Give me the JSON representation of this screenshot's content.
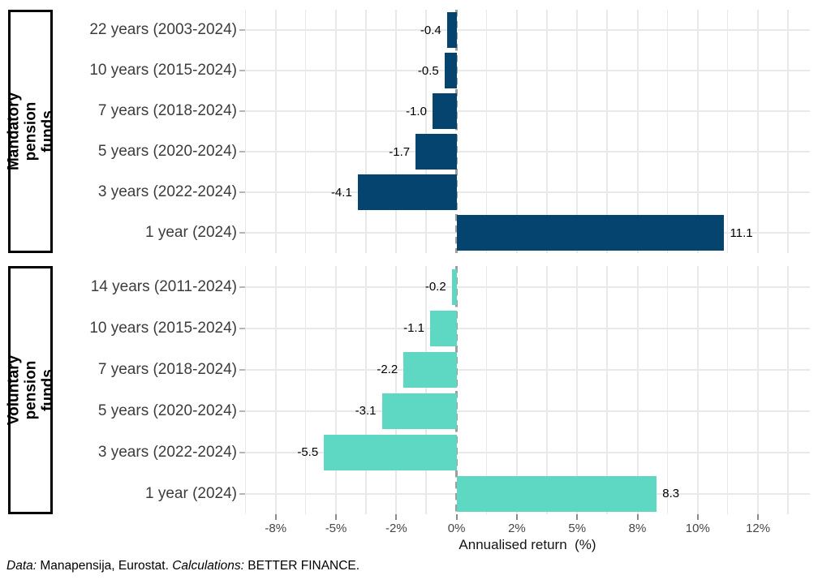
{
  "chart_data": {
    "type": "bar",
    "orientation": "horizontal",
    "title": "",
    "xlabel": "Annualised return  (%)",
    "ylabel": "",
    "xlim": [
      -8.77,
      14.65
    ],
    "grid": true,
    "minor_grid_step": 1.25,
    "x_ticks": [
      {
        "value": -7.5,
        "label": "-8%"
      },
      {
        "value": -5,
        "label": "-5%"
      },
      {
        "value": -2.5,
        "label": "-2%"
      },
      {
        "value": 0,
        "label": "0%"
      },
      {
        "value": 2.5,
        "label": "2%"
      },
      {
        "value": 5,
        "label": "5%"
      },
      {
        "value": 7.5,
        "label": "8%"
      },
      {
        "value": 10,
        "label": "10%"
      },
      {
        "value": 12.5,
        "label": "12%"
      }
    ],
    "panels": [
      {
        "name": "Mandatory pension funds",
        "strip_label": "Mandatory\npension funds",
        "bar_color": "#05446e",
        "categories": [
          "22 years (2003-2024)",
          "10 years (2015-2024)",
          "7 years (2018-2024)",
          "5 years (2020-2024)",
          "3 years (2022-2024)",
          "1 year (2024)"
        ],
        "values": [
          -0.4,
          -0.5,
          -1.0,
          -1.7,
          -4.1,
          11.1
        ],
        "value_labels": [
          "-0.4",
          "-0.5",
          "-1.0",
          "-1.7",
          "-4.1",
          "11.1"
        ]
      },
      {
        "name": "Voluntary pension funds",
        "strip_label": "Voluntary\npension funds",
        "bar_color": "#5ed8c3",
        "categories": [
          "14 years (2011-2024)",
          "10 years (2015-2024)",
          "7 years (2018-2024)",
          "5 years (2020-2024)",
          "3 years (2022-2024)",
          "1 year (2024)"
        ],
        "values": [
          -0.2,
          -1.1,
          -2.2,
          -3.1,
          -5.5,
          8.3
        ],
        "value_labels": [
          "-0.2",
          "-1.1",
          "-2.2",
          "-3.1",
          "-5.5",
          "8.3"
        ]
      }
    ],
    "zero_line_color": "#9e9e9e",
    "grid_color": "#e9e9e9",
    "footer_segments": [
      {
        "text": "Data:",
        "italic": true
      },
      {
        "text": " Manapensija, Eurostat. ",
        "italic": false
      },
      {
        "text": "Calculations:",
        "italic": true
      },
      {
        "text": " BETTER FINANCE.",
        "italic": false
      }
    ]
  }
}
